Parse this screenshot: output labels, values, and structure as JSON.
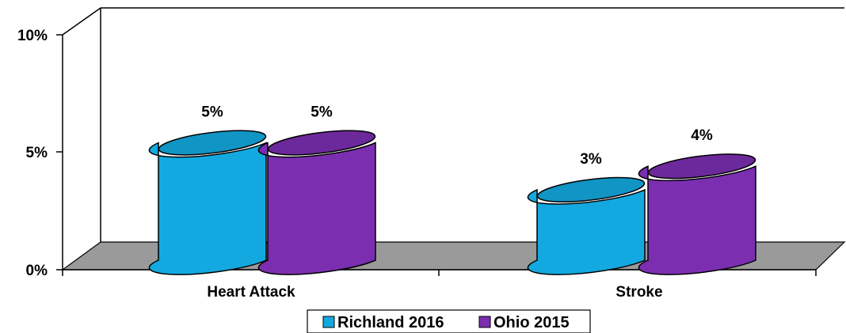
{
  "chart_data": {
    "type": "bar",
    "categories": [
      "Heart Attack",
      "Stroke"
    ],
    "series": [
      {
        "name": "Richland 2016",
        "values": [
          5,
          3
        ],
        "labels": [
          "5%",
          "3%"
        ],
        "color": "#13a9e0"
      },
      {
        "name": "Ohio 2015",
        "values": [
          5,
          4
        ],
        "labels": [
          "5%",
          "4%"
        ],
        "color": "#7b2fb0"
      }
    ],
    "yticks": [
      {
        "value": 0,
        "label": "0%"
      },
      {
        "value": 5,
        "label": "5%"
      },
      {
        "value": 10,
        "label": "10%"
      }
    ],
    "ylim": [
      0,
      10
    ],
    "grid": false,
    "legend_position": "bottom",
    "floor_color": "#9a9a9a"
  }
}
